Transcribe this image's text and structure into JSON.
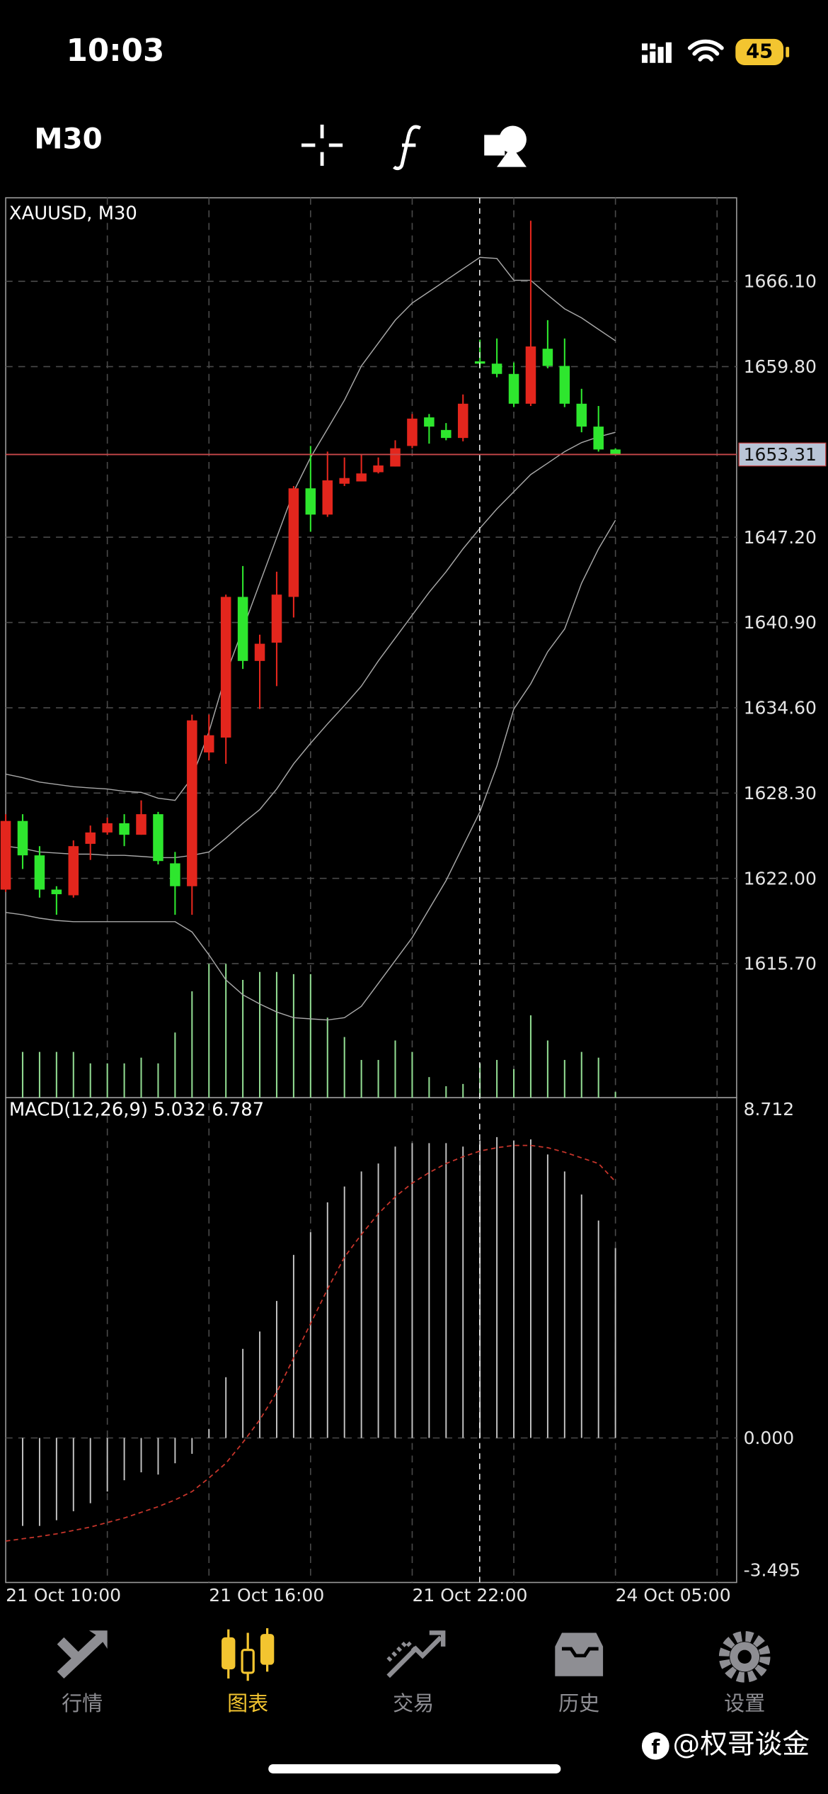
{
  "status_bar": {
    "time": "10:03",
    "battery": "45"
  },
  "toolbar": {
    "timeframe": "M30"
  },
  "chart_data": [
    {
      "type": "candlestick",
      "title": "XAUUSD, M30",
      "categories": [
        "21 Oct 10:00",
        null,
        null,
        null,
        null,
        null,
        null,
        null,
        null,
        null,
        null,
        null,
        "21 Oct 16:00",
        null,
        null,
        null,
        null,
        null,
        null,
        null,
        null,
        null,
        null,
        null,
        "21 Oct 22:00",
        null,
        null,
        null,
        null,
        null,
        null,
        null,
        null,
        null,
        null,
        null,
        "24 Oct 05:00"
      ],
      "open": [
        1621.17,
        1626.24,
        1623.7,
        1621.17,
        1620.75,
        1624.55,
        1625.39,
        1626.07,
        1625.22,
        1626.74,
        1623.11,
        1621.42,
        1631.3,
        1632.4,
        1642.79,
        1638.06,
        1639.41,
        1642.79,
        1650.81,
        1648.87,
        1651.15,
        1651.32,
        1652.0,
        1652.42,
        1653.94,
        1656.05,
        1655.12,
        1654.53,
        1660.19,
        1660.02,
        1659.26,
        1657.06,
        1661.12,
        1659.85,
        1657.06,
        1655.37,
        1653.68
      ],
      "high": [
        1626.74,
        1626.74,
        1624.38,
        1621.42,
        1624.8,
        1625.9,
        1626.49,
        1626.74,
        1627.76,
        1626.91,
        1623.95,
        1634.09,
        1634.09,
        1642.96,
        1645.07,
        1640.0,
        1644.65,
        1650.98,
        1653.94,
        1653.52,
        1653.09,
        1653.35,
        1653.09,
        1654.36,
        1656.3,
        1656.3,
        1655.63,
        1657.74,
        1661.79,
        1661.88,
        1660.1,
        1670.58,
        1663.23,
        1661.88,
        1658.16,
        1656.89,
        1653.77
      ],
      "low": [
        1621.0,
        1622.69,
        1620.58,
        1619.31,
        1620.58,
        1623.36,
        1625.22,
        1624.38,
        1625.22,
        1623.03,
        1619.31,
        1619.31,
        1630.71,
        1630.46,
        1637.47,
        1634.51,
        1636.2,
        1641.27,
        1647.6,
        1648.7,
        1650.98,
        1651.32,
        1651.91,
        1652.42,
        1653.77,
        1654.11,
        1654.36,
        1654.28,
        1659.68,
        1659.01,
        1656.81,
        1656.89,
        1659.68,
        1656.81,
        1654.95,
        1653.52,
        1653.26
      ],
      "close": [
        1626.24,
        1623.7,
        1621.17,
        1620.83,
        1624.38,
        1625.39,
        1626.07,
        1625.22,
        1626.74,
        1623.28,
        1621.42,
        1633.67,
        1632.57,
        1642.79,
        1638.06,
        1639.33,
        1642.96,
        1650.81,
        1648.87,
        1651.4,
        1651.57,
        1651.91,
        1652.5,
        1653.77,
        1655.96,
        1655.37,
        1654.53,
        1657.06,
        1660.02,
        1659.26,
        1657.06,
        1661.29,
        1659.85,
        1657.06,
        1655.37,
        1653.68,
        1653.31
      ],
      "up_color": "#e3261d",
      "down_color": "#2ee62e",
      "bands": {
        "color": "#a8a8a8",
        "upper": [
          1629.7,
          1629.44,
          1629.11,
          1628.94,
          1628.77,
          1628.68,
          1628.6,
          1628.43,
          1628.35,
          1627.92,
          1627.76,
          1629.44,
          1632.82,
          1637.05,
          1640.42,
          1643.8,
          1647.18,
          1650.56,
          1653.09,
          1655.2,
          1657.32,
          1659.85,
          1661.54,
          1663.23,
          1664.5,
          1665.34,
          1666.18,
          1667.03,
          1667.87,
          1667.79,
          1666.18,
          1666.18,
          1665.09,
          1664.07,
          1663.4,
          1662.55,
          1661.71
        ],
        "middle": [
          1624.38,
          1624.21,
          1623.95,
          1623.87,
          1623.79,
          1623.79,
          1623.7,
          1623.7,
          1623.62,
          1623.53,
          1623.53,
          1623.7,
          1623.95,
          1624.97,
          1626.07,
          1627.08,
          1628.6,
          1630.46,
          1631.98,
          1633.41,
          1634.77,
          1636.2,
          1638.06,
          1639.75,
          1641.44,
          1643.13,
          1644.65,
          1646.34,
          1647.86,
          1649.29,
          1650.56,
          1651.83,
          1652.67,
          1653.52,
          1654.19,
          1654.61,
          1654.95
        ],
        "lower": [
          1619.48,
          1619.31,
          1619.06,
          1618.89,
          1618.8,
          1618.8,
          1618.8,
          1618.8,
          1618.8,
          1618.8,
          1618.8,
          1618.04,
          1616.35,
          1614.5,
          1613.4,
          1612.72,
          1612.13,
          1611.71,
          1611.62,
          1611.54,
          1611.71,
          1612.55,
          1614.24,
          1615.93,
          1617.62,
          1619.73,
          1621.84,
          1624.38,
          1626.91,
          1630.29,
          1634.51,
          1636.37,
          1638.74,
          1640.42,
          1643.8,
          1646.34,
          1648.45
        ]
      },
      "volume": {
        "color": "#8fd88f",
        "values": [
          null,
          40,
          40,
          40,
          40,
          30,
          30,
          30,
          35,
          30,
          57,
          93,
          117,
          117,
          103,
          110,
          110,
          108,
          108,
          70,
          53,
          33,
          33,
          50,
          40,
          18,
          10,
          12,
          30,
          33,
          25,
          72,
          50,
          33,
          40,
          35,
          5
        ]
      },
      "current_price": 1653.31,
      "current_price_color": "#c8484a",
      "ylim": [
        1605.8,
        1672.27
      ],
      "yticks": [
        {
          "value": 1666.1,
          "label": "1666.10"
        },
        {
          "value": 1659.8,
          "label": "1659.80"
        },
        {
          "value": 1647.2,
          "label": "1647.20"
        },
        {
          "value": 1640.9,
          "label": "1640.90"
        },
        {
          "value": 1634.6,
          "label": "1634.60"
        },
        {
          "value": 1628.3,
          "label": "1628.30"
        },
        {
          "value": 1622,
          "label": "1622.00"
        },
        {
          "value": 1615.7,
          "label": "1615.70"
        }
      ],
      "grid": true
    },
    {
      "type": "macd",
      "title": "MACD(12,26,9) 5.032 6.787",
      "values": [
        null,
        -2.33,
        -2.33,
        -2.18,
        -1.94,
        -1.73,
        -1.42,
        -1.12,
        -0.91,
        -0.97,
        -0.67,
        -0.42,
        0.24,
        1.61,
        2.36,
        2.82,
        3.63,
        4.85,
        5.45,
        6.24,
        6.66,
        7.06,
        7.27,
        7.72,
        7.81,
        7.81,
        7.81,
        7.72,
        7.88,
        7.97,
        7.88,
        7.91,
        7.51,
        7.06,
        6.45,
        5.76,
        5.03
      ],
      "signal": [
        -2.73,
        -2.67,
        -2.61,
        -2.54,
        -2.45,
        -2.36,
        -2.24,
        -2.12,
        -1.97,
        -1.82,
        -1.64,
        -1.42,
        -1.06,
        -0.67,
        -0.12,
        0.48,
        1.21,
        2.12,
        3.03,
        3.94,
        4.79,
        5.39,
        5.94,
        6.39,
        6.75,
        7.03,
        7.27,
        7.45,
        7.6,
        7.69,
        7.75,
        7.75,
        7.69,
        7.57,
        7.42,
        7.27,
        6.79
      ],
      "color": "#c4c4c4",
      "signal_color": "#c8352b",
      "ylim": [
        -3.495,
        8.712
      ],
      "yticks": [
        8.712,
        {
          "value": 0,
          "label": "0.000"
        },
        -3.495
      ],
      "grid": true
    }
  ],
  "tab_bar": {
    "tabs": [
      "行情",
      "图表",
      "交易",
      "历史",
      "设置"
    ],
    "active": 1,
    "color": "#8e8e93",
    "active_color": "#f3c530"
  },
  "watermark": "@权哥谈金"
}
